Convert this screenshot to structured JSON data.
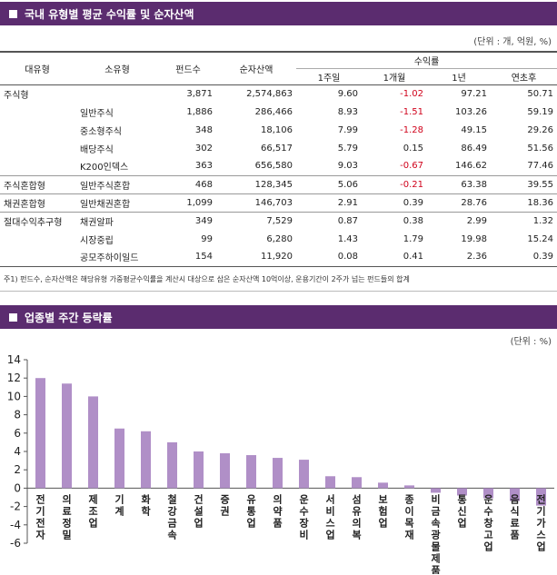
{
  "section1": {
    "title": "국내 유형별 평균 수익률 및 순자산액",
    "unit": "(단위 : 개, 억원, %)",
    "headers": {
      "type": "대유형",
      "subtype": "소유형",
      "count": "펀드수",
      "nav": "순자산액",
      "return_group": "수익률",
      "w1": "1주일",
      "m1": "1개월",
      "y1": "1년",
      "ytd": "연초후"
    },
    "rows": [
      {
        "type": "주식형",
        "subtype": "",
        "count": "3,871",
        "nav": "2,574,863",
        "w1": "9.60",
        "m1": "-1.02",
        "y1": "97.21",
        "ytd": "50.71"
      },
      {
        "type": "",
        "subtype": "일반주식",
        "count": "1,886",
        "nav": "286,466",
        "w1": "8.93",
        "m1": "-1.51",
        "y1": "103.26",
        "ytd": "59.19"
      },
      {
        "type": "",
        "subtype": "중소형주식",
        "count": "348",
        "nav": "18,106",
        "w1": "7.99",
        "m1": "-1.28",
        "y1": "49.15",
        "ytd": "29.26"
      },
      {
        "type": "",
        "subtype": "배당주식",
        "count": "302",
        "nav": "66,517",
        "w1": "5.79",
        "m1": "0.15",
        "y1": "86.49",
        "ytd": "51.56"
      },
      {
        "type": "",
        "subtype": "K200인덱스",
        "count": "363",
        "nav": "656,580",
        "w1": "9.03",
        "m1": "-0.67",
        "y1": "146.62",
        "ytd": "77.46"
      },
      {
        "type": "주식혼합형",
        "subtype": "일반주식혼합",
        "count": "468",
        "nav": "128,345",
        "w1": "5.06",
        "m1": "-0.21",
        "y1": "63.38",
        "ytd": "39.55"
      },
      {
        "type": "채권혼합형",
        "subtype": "일반채권혼합",
        "count": "1,099",
        "nav": "146,703",
        "w1": "2.91",
        "m1": "0.39",
        "y1": "28.76",
        "ytd": "18.36"
      },
      {
        "type": "절대수익추구형",
        "subtype": "채권알파",
        "count": "349",
        "nav": "7,529",
        "w1": "0.87",
        "m1": "0.38",
        "y1": "2.99",
        "ytd": "1.32"
      },
      {
        "type": "",
        "subtype": "시장중립",
        "count": "99",
        "nav": "6,280",
        "w1": "1.43",
        "m1": "1.79",
        "y1": "19.98",
        "ytd": "15.24"
      },
      {
        "type": "",
        "subtype": "공모주하이일드",
        "count": "154",
        "nav": "11,920",
        "w1": "0.08",
        "m1": "0.41",
        "y1": "2.36",
        "ytd": "0.39"
      }
    ],
    "note": "주1) 펀드수, 순자산액은 해당유형 가중평균수익률을 계산시 대상으로 삼은 순자산액 10억이상, 운용기간이 2주가 넘는 펀드들의 합계"
  },
  "section2": {
    "title": "업종별 주간 등락률",
    "unit": "(단위 : %)"
  },
  "colors": {
    "header_bar": "#5b2c6f",
    "bar": "#b08fc7",
    "negative_text": "#d0021b"
  },
  "chart_data": {
    "type": "bar",
    "categories": [
      "전기전자",
      "의료정밀",
      "제조업",
      "기계",
      "화학",
      "철강금속",
      "건설업",
      "증권",
      "유통업",
      "의약품",
      "운수장비",
      "서비스업",
      "섬유의복",
      "보험업",
      "종이목재",
      "비금속광물제품",
      "통신업",
      "운수창고업",
      "음식료품",
      "전기가스업"
    ],
    "values": [
      12.0,
      11.4,
      10.0,
      6.5,
      6.2,
      5.0,
      4.0,
      3.8,
      3.6,
      3.3,
      3.1,
      1.3,
      1.2,
      0.6,
      0.3,
      -0.5,
      -0.8,
      -1.1,
      -1.4,
      -1.9
    ],
    "ylim": [
      -6,
      14
    ],
    "yticks": [
      "-6",
      "-4",
      "-2",
      "0",
      "2",
      "4",
      "6",
      "8",
      "10",
      "12",
      "14"
    ],
    "grid": false,
    "legend": "none"
  }
}
